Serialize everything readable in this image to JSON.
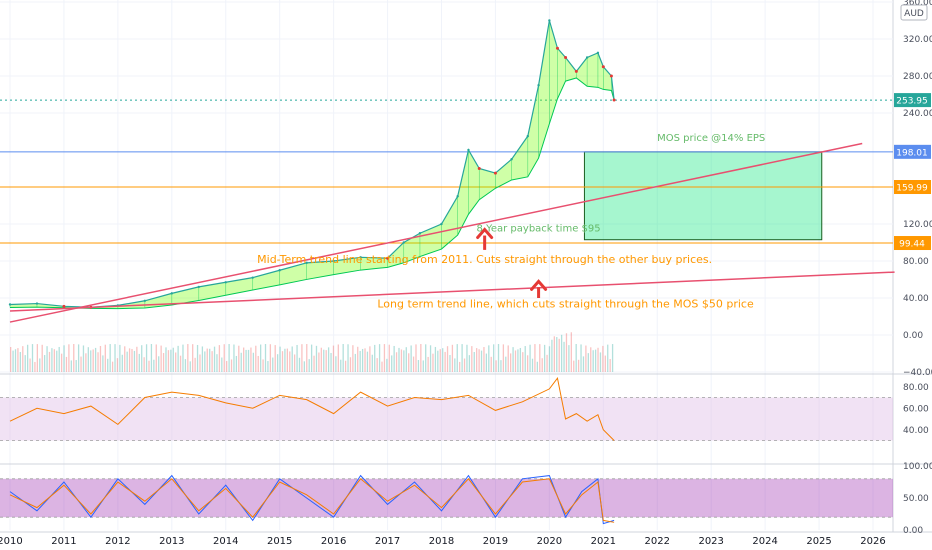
{
  "chart_data": [
    {
      "type": "line",
      "title": "",
      "currency": "AUD",
      "x_domain": [
        2010,
        2026
      ],
      "ylim": [
        -40,
        360
      ],
      "y_ticks": [
        "360.00",
        "320.00",
        "280.00",
        "240.00",
        "120.00",
        "80.00",
        "40.00",
        "0.00",
        "−40.00"
      ],
      "x_ticks": [
        "2010",
        "2011",
        "2012",
        "2013",
        "2014",
        "2015",
        "2016",
        "2017",
        "2018",
        "2019",
        "2020",
        "2021",
        "2022",
        "2023",
        "2024",
        "2025",
        "2026"
      ],
      "price_series": {
        "name": "",
        "x": [
          2010.0,
          2010.5,
          2011.0,
          2011.5,
          2012.0,
          2012.5,
          2013.0,
          2013.5,
          2014.0,
          2014.5,
          2015.0,
          2015.5,
          2016.0,
          2016.5,
          2017.0,
          2017.3,
          2017.6,
          2018.0,
          2018.3,
          2018.5,
          2018.7,
          2019.0,
          2019.3,
          2019.6,
          2019.8,
          2020.0,
          2020.15,
          2020.3,
          2020.5,
          2020.7,
          2020.9,
          2021.0,
          2021.15,
          2021.2
        ],
        "values": [
          33,
          34,
          31,
          30,
          32,
          37,
          45,
          52,
          57,
          62,
          70,
          78,
          80,
          84,
          83,
          100,
          110,
          120,
          150,
          200,
          180,
          175,
          190,
          215,
          270,
          340,
          310,
          300,
          285,
          300,
          305,
          290,
          280,
          254
        ]
      },
      "price_labels": [
        {
          "value": 253.95,
          "text": "253.95",
          "color": "#26a69a"
        },
        {
          "value": 198.01,
          "text": "198.01",
          "color": "#5b8def"
        },
        {
          "value": 159.99,
          "text": "159.99",
          "color": "#ff9800"
        },
        {
          "value": 99.44,
          "text": "99.44",
          "color": "#ff9800"
        }
      ],
      "horizontal_lines": [
        {
          "value": 198.01,
          "color": "#5b8def"
        },
        {
          "value": 159.99,
          "color": "#ff9800"
        },
        {
          "value": 99.44,
          "color": "#ff9800"
        },
        {
          "value": 253.95,
          "color": "#26a69a",
          "dotted": true
        }
      ],
      "trend_lines": [
        {
          "from": [
            2010.0,
            14
          ],
          "to": [
            2025.8,
            207
          ],
          "color": "#e8506f",
          "name": "mid-term"
        },
        {
          "from": [
            2010.0,
            26
          ],
          "to": [
            2026.4,
            68
          ],
          "color": "#e8506f",
          "name": "long-term"
        }
      ],
      "zone": {
        "x": [
          2020.65,
          2025.05
        ],
        "y": [
          103,
          198
        ],
        "fill": "#00e676",
        "border": "#1b5e20"
      },
      "annotations": [
        {
          "text": "MOS price @14% EPS",
          "x": 2023.0,
          "y": 210,
          "style": "green"
        },
        {
          "text": "8 Year payback time $95",
          "x": 2019.8,
          "y": 112,
          "style": "green"
        },
        {
          "text": "Mid-Term trend line starting from 2011. Cuts straight through the other buy prices.",
          "x": 2018.8,
          "y": 78,
          "style": "orange"
        },
        {
          "text": "Long term trend line, which cuts straight through the MOS $50 price",
          "x": 2020.3,
          "y": 30,
          "style": "orange"
        }
      ],
      "arrows": [
        {
          "x": 2018.8,
          "y_tip": 114,
          "y_base": 92
        },
        {
          "x": 2019.8,
          "y_tip": 58,
          "y_base": 40
        }
      ]
    },
    {
      "type": "line",
      "title": "",
      "ylim": [
        10,
        90
      ],
      "y_ticks": [
        "80.00",
        "60.00",
        "40.00"
      ],
      "band": [
        30,
        70
      ],
      "series": [
        {
          "name": "",
          "color": "#f57c00",
          "x": [
            2010.0,
            2010.5,
            2011.0,
            2011.5,
            2012.0,
            2012.5,
            2013.0,
            2013.5,
            2014.0,
            2014.5,
            2015.0,
            2015.5,
            2016.0,
            2016.5,
            2017.0,
            2017.5,
            2018.0,
            2018.5,
            2019.0,
            2019.5,
            2020.0,
            2020.15,
            2020.3,
            2020.5,
            2020.7,
            2020.9,
            2021.0,
            2021.2
          ],
          "values": [
            48,
            60,
            55,
            62,
            45,
            70,
            75,
            72,
            65,
            60,
            72,
            68,
            55,
            75,
            62,
            70,
            68,
            72,
            58,
            66,
            78,
            88,
            50,
            55,
            48,
            54,
            40,
            30
          ]
        }
      ]
    },
    {
      "type": "line",
      "title": "",
      "ylim": [
        0,
        100
      ],
      "y_ticks": [
        "100.00",
        "50.00",
        "0.00"
      ],
      "band": [
        20,
        80
      ],
      "series": [
        {
          "name": "",
          "color": "#2962ff",
          "x": [
            2010.0,
            2010.5,
            2011.0,
            2011.5,
            2012.0,
            2012.5,
            2013.0,
            2013.5,
            2014.0,
            2014.5,
            2015.0,
            2015.5,
            2016.0,
            2016.5,
            2017.0,
            2017.5,
            2018.0,
            2018.5,
            2019.0,
            2019.5,
            2020.0,
            2020.3,
            2020.6,
            2020.9,
            2021.0,
            2021.2
          ],
          "values": [
            60,
            30,
            75,
            20,
            80,
            40,
            85,
            25,
            70,
            15,
            80,
            50,
            20,
            85,
            40,
            75,
            30,
            85,
            20,
            80,
            85,
            20,
            60,
            80,
            10,
            15
          ]
        },
        {
          "name": "",
          "color": "#f57c00",
          "x": [
            2010.0,
            2010.5,
            2011.0,
            2011.5,
            2012.0,
            2012.5,
            2013.0,
            2013.5,
            2014.0,
            2014.5,
            2015.0,
            2015.5,
            2016.0,
            2016.5,
            2017.0,
            2017.5,
            2018.0,
            2018.5,
            2019.0,
            2019.5,
            2020.0,
            2020.3,
            2020.6,
            2020.9,
            2021.0,
            2021.2
          ],
          "values": [
            55,
            35,
            70,
            25,
            75,
            45,
            80,
            30,
            65,
            20,
            75,
            55,
            25,
            80,
            45,
            70,
            35,
            80,
            25,
            75,
            80,
            25,
            55,
            75,
            15,
            12
          ]
        }
      ]
    }
  ]
}
